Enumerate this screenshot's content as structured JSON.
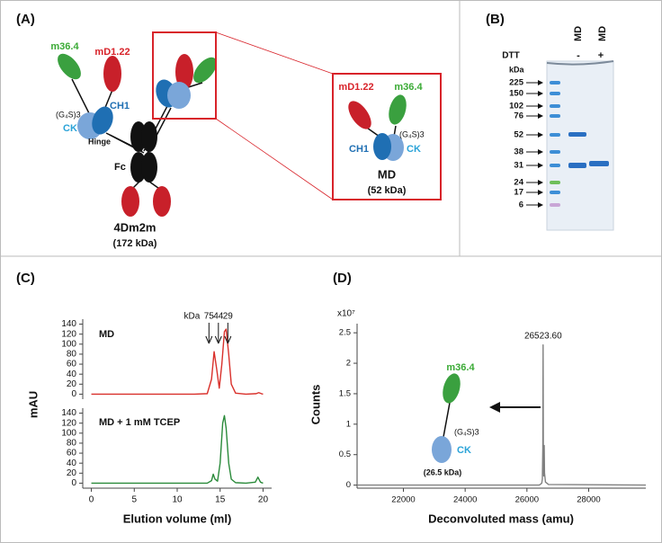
{
  "panels": {
    "a": "(A)",
    "b": "(B)",
    "c": "(C)",
    "d": "(D)"
  },
  "diagram_a": {
    "heavy_fab": "mD1.22",
    "light_fab": "m36.4",
    "ch1": "CH1",
    "ck": "CK",
    "linker": "(G₄S)3",
    "hinge": "Hinge",
    "fc": "Fc",
    "name": "4Dm2m",
    "mass": "(172 kDa)",
    "inset": {
      "heavy_fab": "mD1.22",
      "light_fab": "m36.4",
      "linker": "(G₄S)3",
      "ch1": "CH1",
      "ck": "CK",
      "name": "MD",
      "mass": "(52 kDa)"
    }
  },
  "gel_b": {
    "lanes": [
      "MD",
      "MD"
    ],
    "dtt_label": "DTT",
    "dtt": [
      "-",
      "+"
    ],
    "unit": "kDa",
    "ladder": [
      225,
      150,
      102,
      76,
      52,
      38,
      31,
      24,
      17,
      6
    ]
  },
  "chart_data": [
    {
      "type": "line",
      "title": "MD",
      "ylabel": "mAU",
      "x": [
        0,
        12,
        13.5,
        14,
        14.3,
        14.6,
        14.9,
        15.2,
        15.5,
        15.7,
        16,
        16.3,
        16.8,
        18,
        19.2,
        19.5,
        19.8,
        20
      ],
      "series": [
        {
          "color": "#d9302b",
          "values": [
            0,
            0,
            1,
            30,
            85,
            50,
            12,
            60,
            125,
            130,
            80,
            20,
            2,
            0,
            1,
            3,
            1,
            0
          ]
        }
      ],
      "xlim": [
        -1,
        21
      ],
      "ylim": [
        -10,
        150
      ],
      "yticks": [
        0,
        20,
        40,
        60,
        80,
        100,
        120,
        140
      ],
      "markers": {
        "unit": "kDa",
        "labels": [
          75,
          44,
          29
        ],
        "x": [
          13.7,
          14.8,
          15.9
        ]
      }
    },
    {
      "type": "line",
      "title": "MD + 1 mM TCEP",
      "xlabel": "Elution volume (ml)",
      "x": [
        0,
        12,
        13.5,
        14,
        14.2,
        14.4,
        14.7,
        15,
        15.3,
        15.5,
        15.7,
        16,
        16.3,
        16.8,
        18,
        19.1,
        19.4,
        19.7,
        20
      ],
      "series": [
        {
          "color": "#2a8a3a",
          "values": [
            0,
            0,
            0,
            5,
            18,
            8,
            4,
            40,
            120,
            135,
            110,
            40,
            8,
            1,
            0,
            2,
            12,
            2,
            0
          ]
        }
      ],
      "xlim": [
        -1,
        21
      ],
      "ylim": [
        -10,
        150
      ],
      "yticks": [
        0,
        20,
        40,
        60,
        80,
        100,
        120,
        140
      ],
      "xticks": [
        0,
        5,
        10,
        15,
        20
      ]
    },
    {
      "type": "line",
      "ylabel": "Counts",
      "y_multiplier": "x10⁷",
      "xlabel": "Deconvoluted mass (amu)",
      "x": [
        20500,
        26400,
        26480,
        26500,
        26515,
        26523.6,
        26532,
        26545,
        26555,
        26560,
        26570,
        26600,
        26700,
        29850
      ],
      "series": [
        {
          "color": "#808080",
          "values": [
            0,
            0,
            0.03,
            0.1,
            0.6,
            2.3,
            0.5,
            0.15,
            0.3,
            0.65,
            0.2,
            0.05,
            0.01,
            0
          ]
        }
      ],
      "peak_label": {
        "value": 26523.6,
        "label": "26523.60"
      },
      "xlim": [
        20500,
        29850
      ],
      "ylim": [
        -0.05,
        2.65
      ],
      "yticks": [
        0,
        0.5,
        1,
        1.5,
        2,
        2.5
      ],
      "xticks": [
        22000,
        24000,
        26000,
        28000
      ],
      "inset": {
        "light_fab": "m36.4",
        "linker": "(G₄S)3",
        "ck": "CK",
        "mass": "(26.5 kDa)"
      }
    }
  ]
}
